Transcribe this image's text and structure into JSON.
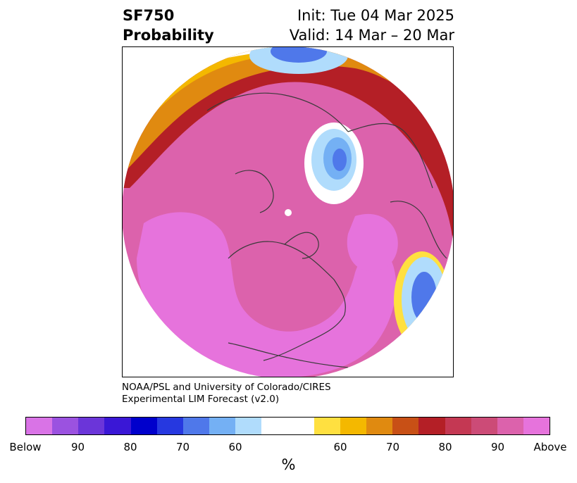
{
  "header": {
    "variable": "SF750",
    "product": "Probability",
    "init": "Init: Tue 04 Mar 2025",
    "valid": "Valid: 14 Mar – 20 Mar"
  },
  "credit": {
    "line1": "NOAA/PSL and University of Colorado/CIRES",
    "line2": "Experimental LIM Forecast (v2.0)"
  },
  "colorbar": {
    "colors": [
      "#d973e6",
      "#9b52e0",
      "#6b35d9",
      "#3a17d6",
      "#0000cc",
      "#2638e0",
      "#4f78ea",
      "#74b0f4",
      "#b0dcfc",
      "#ffffff",
      "#ffffff",
      "#ffe040",
      "#f4b800",
      "#e08a10",
      "#c85016",
      "#b41f26",
      "#c43853",
      "#cc4b77",
      "#dc62ac",
      "#e673dc"
    ],
    "tick_labels": [
      "Below",
      "90",
      "80",
      "70",
      "60",
      "60",
      "70",
      "80",
      "90",
      "Above"
    ],
    "unit": "%"
  },
  "map": {
    "projection": "north polar stereographic",
    "colors": {
      "above_high": "#e673dc",
      "above_90": "#dc62ac",
      "above_85": "#cc4b77",
      "above_80": "#c43853",
      "above_75": "#b41f26",
      "above_70": "#c85016",
      "above_65": "#e08a10",
      "above_60": "#f4b800",
      "above_55": "#ffe040",
      "below_55": "#b0dcfc",
      "below_60": "#74b0f4",
      "below_65": "#4f78ea",
      "below_70": "#2638e0",
      "coast": "#3a3a3a"
    }
  }
}
